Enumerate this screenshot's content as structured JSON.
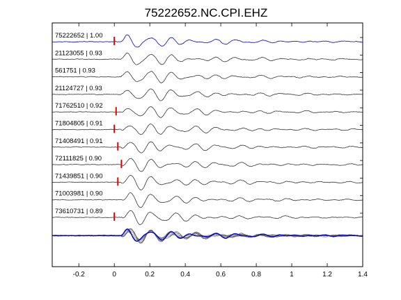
{
  "chart_data": {
    "type": "line",
    "title": "75222652.NC.CPI.EHZ",
    "xlabel": "",
    "ylabel": "",
    "xlim": [
      -0.35,
      1.4
    ],
    "xticks": [
      -0.2,
      0,
      0.2,
      0.4,
      0.6,
      0.8,
      1,
      1.2,
      1.4
    ],
    "xtick_labels": [
      "-0.2",
      "0",
      "0.2",
      "0.4",
      "0.6",
      "0.8",
      "1",
      "1.2",
      "1.4"
    ],
    "grid": false,
    "colors": {
      "reference": "#0000cc",
      "trace": "#333333",
      "pick": "#e00000",
      "stack": "#666666"
    },
    "traces": [
      {
        "id": "75222652",
        "cc": "1.00",
        "label": "75222652 | 1.00",
        "pick": 0.0,
        "reference": true
      },
      {
        "id": "21123055",
        "cc": "0.93",
        "label": "21123055 | 0.93",
        "pick": null
      },
      {
        "id": "561751",
        "cc": "0.93",
        "label": "561751 | 0.93",
        "pick": null
      },
      {
        "id": "21124727",
        "cc": "0.93",
        "label": "21124727 | 0.93",
        "pick": null
      },
      {
        "id": "71762510",
        "cc": "0.92",
        "label": "71762510 | 0.92",
        "pick": 0.01
      },
      {
        "id": "71804805",
        "cc": "0.91",
        "label": "71804805 | 0.91",
        "pick": 0.0
      },
      {
        "id": "71408491",
        "cc": "0.91",
        "label": "71408491 | 0.91",
        "pick": 0.02
      },
      {
        "id": "72111825",
        "cc": "0.90",
        "label": "72111825 | 0.90",
        "pick": 0.04
      },
      {
        "id": "71439851",
        "cc": "0.90",
        "label": "71439851 | 0.90",
        "pick": 0.02
      },
      {
        "id": "71003981",
        "cc": "0.90",
        "label": "71003981 | 0.90",
        "pick": null
      },
      {
        "id": "73610731",
        "cc": "0.89",
        "label": "73610731 | 0.89",
        "pick": 0.0
      }
    ],
    "stack": {
      "pick": null
    }
  }
}
